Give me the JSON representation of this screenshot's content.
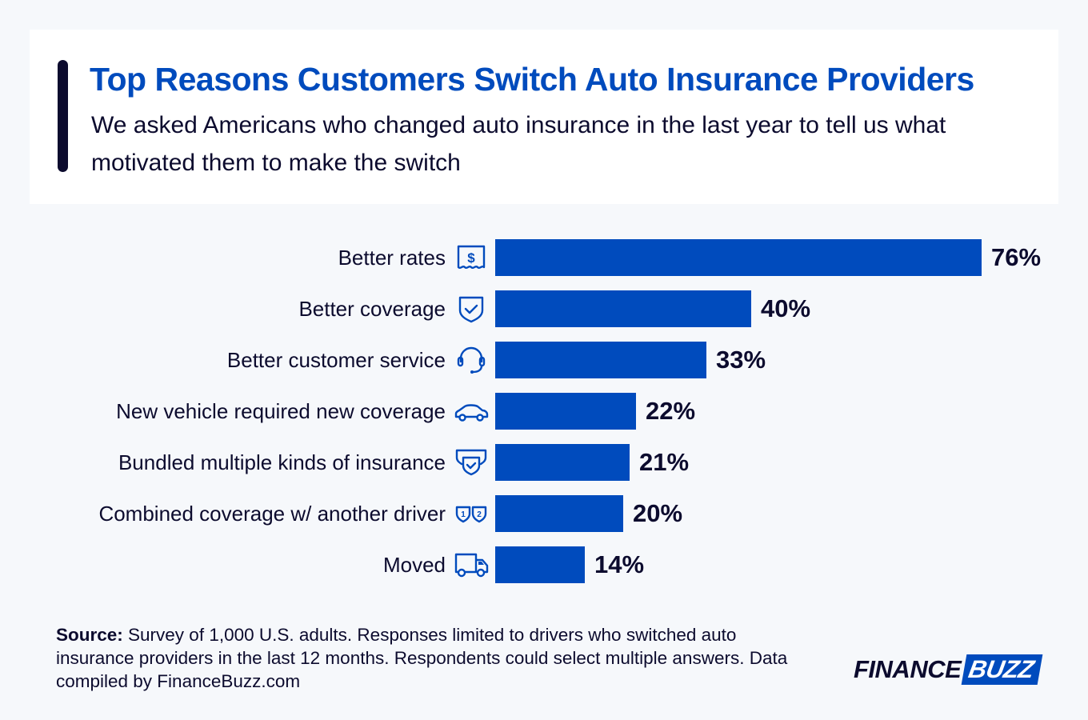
{
  "header": {
    "title": "Top Reasons Customers Switch Auto Insurance Providers",
    "subtitle": "We asked Americans who changed auto insurance in the last year to tell us what motivated them to make the switch"
  },
  "chart_data": {
    "type": "bar",
    "orientation": "horizontal",
    "categories": [
      "Better rates",
      "Better coverage",
      "Better customer service",
      "New vehicle required new coverage",
      "Bundled multiple kinds of insurance",
      "Combined coverage w/ another driver",
      "Moved"
    ],
    "values": [
      76,
      40,
      33,
      22,
      21,
      20,
      14
    ],
    "value_labels": [
      "76%",
      "40%",
      "33%",
      "22%",
      "21%",
      "20%",
      "14%"
    ],
    "icons": [
      "receipt-dollar-icon",
      "shield-check-icon",
      "headset-icon",
      "car-icon",
      "double-shield-check-icon",
      "shields-1-2-icon",
      "truck-icon"
    ],
    "unit": "%",
    "bar_color": "#004bbd",
    "grid": false
  },
  "source": {
    "label": "Source:",
    "text": " Survey of 1,000 U.S. adults. Responses limited to drivers who switched auto insurance providers in the last 12 months. Respondents could select multiple answers. Data compiled by FinanceBuzz.com"
  },
  "logo": {
    "part1": "FINANCE",
    "part2": "BUZZ"
  },
  "colors": {
    "accent": "#004bbd",
    "text": "#0c0b2e",
    "background": "#f6f8fb"
  }
}
